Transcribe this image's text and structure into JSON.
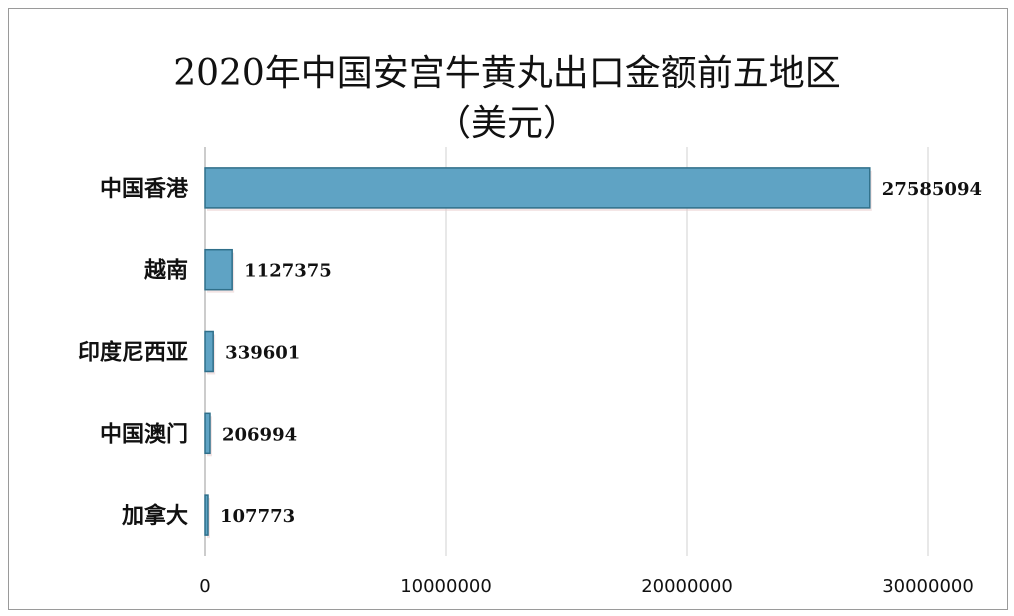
{
  "chart_data": {
    "type": "bar",
    "orientation": "horizontal",
    "title": "2020年中国安宫牛黄丸出口金额前五地区",
    "subtitle": "（美元）",
    "categories": [
      "中国香港",
      "越南",
      "印度尼西亚",
      "中国澳门",
      "加拿大"
    ],
    "values": [
      27585094,
      1127375,
      339601,
      206994,
      107773
    ],
    "data_labels": [
      "27585094",
      "1127375",
      "339601",
      "206994",
      "107773"
    ],
    "xlim": [
      0,
      30000000
    ],
    "x_ticks": [
      "0",
      "10000000",
      "20000000",
      "30000000"
    ],
    "grid": true,
    "legend": "none",
    "colors": {
      "bar": "#5fa3c4",
      "bar_border": "#2f6f8a",
      "grid": "#d0d0d0"
    }
  }
}
